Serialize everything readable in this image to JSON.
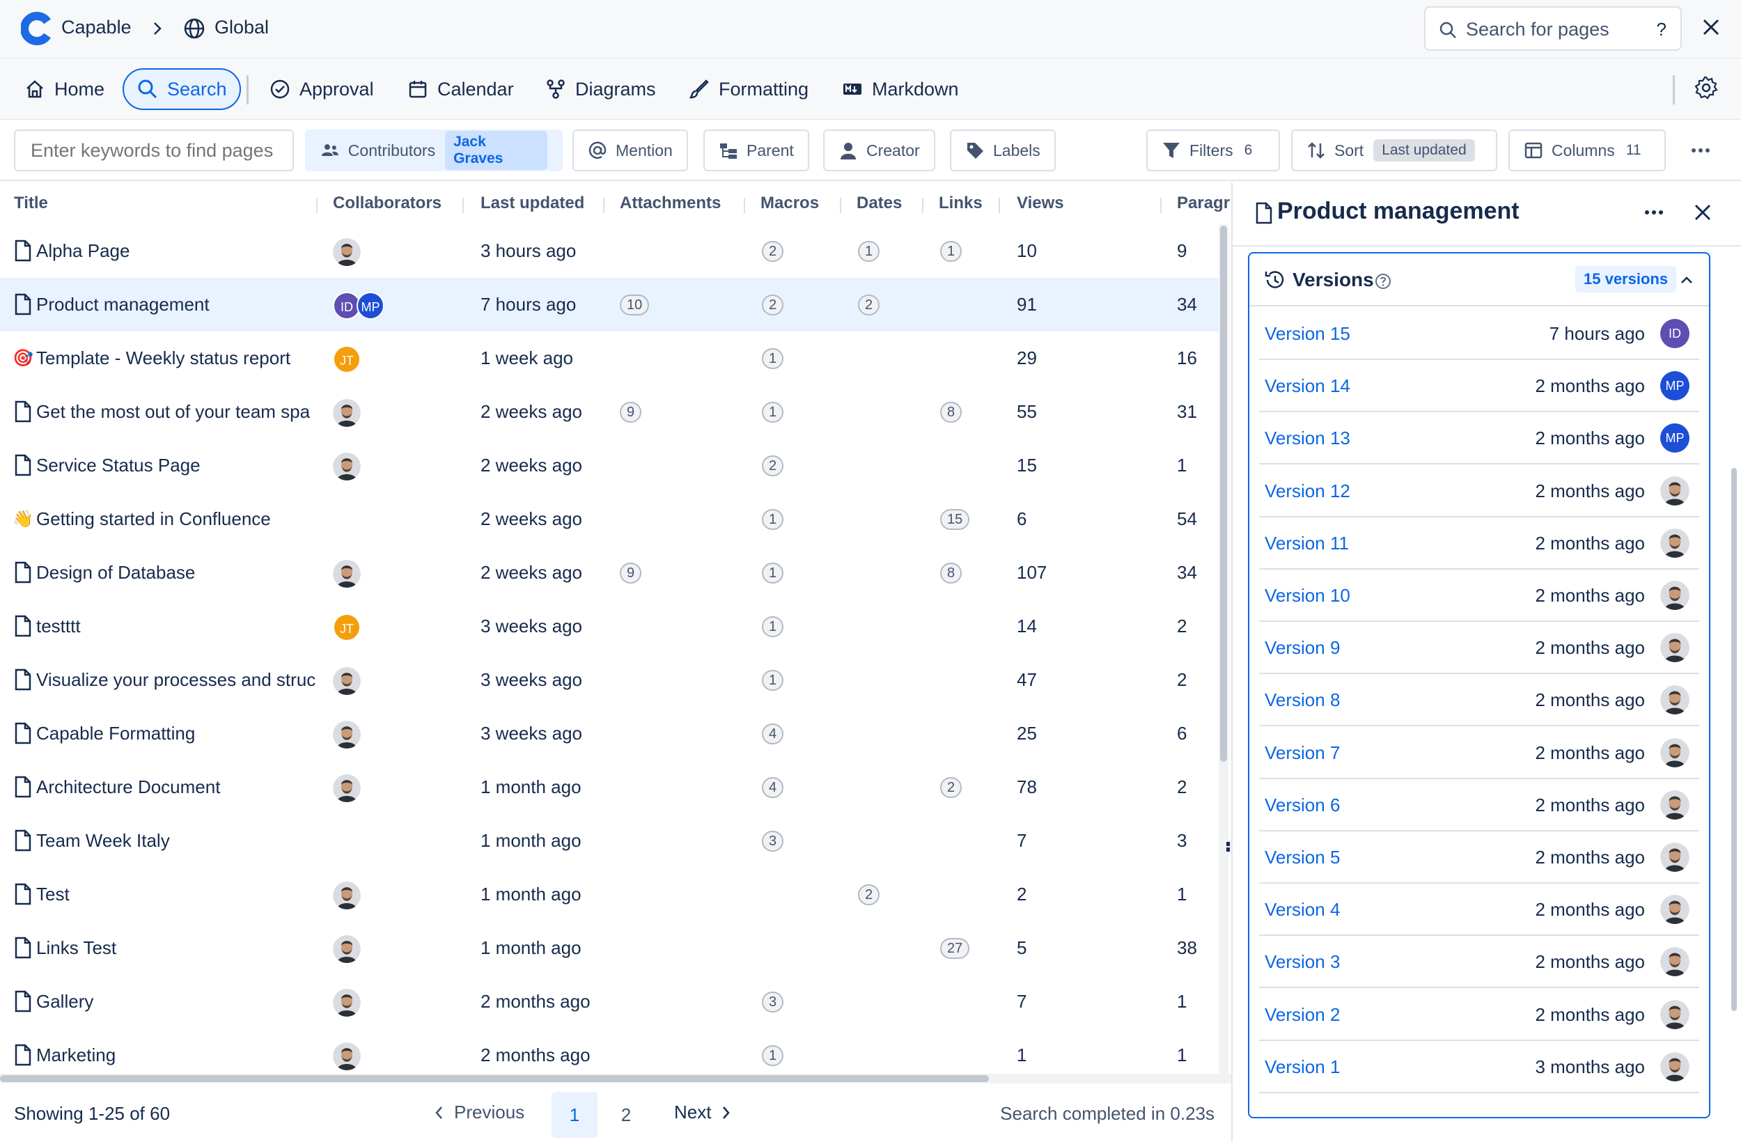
{
  "breadcrumb": {
    "app": "Capable",
    "space": "Global"
  },
  "top_search": {
    "placeholder": "Search for pages",
    "help": "?"
  },
  "nav": {
    "home": "Home",
    "search": "Search",
    "approval": "Approval",
    "calendar": "Calendar",
    "diagrams": "Diagrams",
    "formatting": "Formatting",
    "markdown": "Markdown"
  },
  "filters": {
    "keyword_placeholder": "Enter keywords to find pages",
    "contributors": "Contributors",
    "contributors_value": "Jack Graves",
    "mention": "Mention",
    "parent": "Parent",
    "creator": "Creator",
    "labels": "Labels",
    "filters": "Filters",
    "filters_count": "6",
    "sort": "Sort",
    "sort_value": "Last updated",
    "columns": "Columns",
    "columns_count": "11"
  },
  "table": {
    "headers": {
      "title": "Title",
      "collaborators": "Collaborators",
      "last_updated": "Last updated",
      "attachments": "Attachments",
      "macros": "Macros",
      "dates": "Dates",
      "links": "Links",
      "views": "Views",
      "paragraphs": "Paragr"
    },
    "rows": [
      {
        "title": "Alpha Page",
        "icon": "doc",
        "collab": [
          "photo"
        ],
        "updated": "3 hours ago",
        "attachments": "",
        "macros": "2",
        "dates": "1",
        "links": "1",
        "views": "10",
        "paragraphs": "9"
      },
      {
        "title": "Product management",
        "icon": "doc",
        "collab": [
          "ID",
          "MP"
        ],
        "updated": "7 hours ago",
        "attachments": "10",
        "macros": "2",
        "dates": "2",
        "links": "",
        "views": "91",
        "paragraphs": "34"
      },
      {
        "title": "Template - Weekly status report",
        "icon": "🎯",
        "collab": [
          "JT"
        ],
        "updated": "1 week ago",
        "attachments": "",
        "macros": "1",
        "dates": "",
        "links": "",
        "views": "29",
        "paragraphs": "16"
      },
      {
        "title": "Get the most out of your team spa",
        "icon": "doc",
        "collab": [
          "photo"
        ],
        "updated": "2 weeks ago",
        "attachments": "9",
        "macros": "1",
        "dates": "",
        "links": "8",
        "views": "55",
        "paragraphs": "31"
      },
      {
        "title": "Service Status Page",
        "icon": "doc",
        "collab": [
          "photo"
        ],
        "updated": "2 weeks ago",
        "attachments": "",
        "macros": "2",
        "dates": "",
        "links": "",
        "views": "15",
        "paragraphs": "1"
      },
      {
        "title": "Getting started in Confluence",
        "icon": "👋",
        "collab": [],
        "updated": "2 weeks ago",
        "attachments": "",
        "macros": "1",
        "dates": "",
        "links": "15",
        "views": "6",
        "paragraphs": "54"
      },
      {
        "title": "Design of Database",
        "icon": "doc",
        "collab": [
          "photo"
        ],
        "updated": "2 weeks ago",
        "attachments": "9",
        "macros": "1",
        "dates": "",
        "links": "8",
        "views": "107",
        "paragraphs": "34"
      },
      {
        "title": "testttt",
        "icon": "doc",
        "collab": [
          "JT"
        ],
        "updated": "3 weeks ago",
        "attachments": "",
        "macros": "1",
        "dates": "",
        "links": "",
        "views": "14",
        "paragraphs": "2"
      },
      {
        "title": "Visualize your processes and struc",
        "icon": "doc",
        "collab": [
          "photo"
        ],
        "updated": "3 weeks ago",
        "attachments": "",
        "macros": "1",
        "dates": "",
        "links": "",
        "views": "47",
        "paragraphs": "2"
      },
      {
        "title": "Capable Formatting",
        "icon": "doc",
        "collab": [
          "photo"
        ],
        "updated": "3 weeks ago",
        "attachments": "",
        "macros": "4",
        "dates": "",
        "links": "",
        "views": "25",
        "paragraphs": "6"
      },
      {
        "title": "Architecture Document",
        "icon": "doc",
        "collab": [
          "photo"
        ],
        "updated": "1 month ago",
        "attachments": "",
        "macros": "4",
        "dates": "",
        "links": "2",
        "views": "78",
        "paragraphs": "2"
      },
      {
        "title": "Team Week Italy",
        "icon": "doc",
        "collab": [],
        "updated": "1 month ago",
        "attachments": "",
        "macros": "3",
        "dates": "",
        "links": "",
        "views": "7",
        "paragraphs": "3"
      },
      {
        "title": "Test",
        "icon": "doc",
        "collab": [
          "photo"
        ],
        "updated": "1 month ago",
        "attachments": "",
        "macros": "",
        "dates": "2",
        "links": "",
        "views": "2",
        "paragraphs": "1"
      },
      {
        "title": "Links Test",
        "icon": "doc",
        "collab": [
          "photo"
        ],
        "updated": "1 month ago",
        "attachments": "",
        "macros": "",
        "dates": "",
        "links": "27",
        "views": "5",
        "paragraphs": "38"
      },
      {
        "title": "Gallery",
        "icon": "doc",
        "collab": [
          "photo"
        ],
        "updated": "2 months ago",
        "attachments": "",
        "macros": "3",
        "dates": "",
        "links": "",
        "views": "7",
        "paragraphs": "1"
      },
      {
        "title": "Marketing",
        "icon": "doc",
        "collab": [
          "photo"
        ],
        "updated": "2 months ago",
        "attachments": "",
        "macros": "1",
        "dates": "",
        "links": "",
        "views": "1",
        "paragraphs": "1"
      }
    ],
    "selected_row": 1
  },
  "footer": {
    "showing": "Showing 1-25 of 60",
    "previous": "Previous",
    "page1": "1",
    "page2": "2",
    "next": "Next",
    "search_time": "Search completed in 0.23s"
  },
  "panel": {
    "title": "Product management",
    "versions_title": "Versions",
    "versions_count": "15 versions",
    "versions": [
      {
        "name": "Version 15",
        "time": "7 hours ago",
        "author": "ID"
      },
      {
        "name": "Version 14",
        "time": "2 months ago",
        "author": "MP"
      },
      {
        "name": "Version 13",
        "time": "2 months ago",
        "author": "MP"
      },
      {
        "name": "Version 12",
        "time": "2 months ago",
        "author": "photo"
      },
      {
        "name": "Version 11",
        "time": "2 months ago",
        "author": "photo"
      },
      {
        "name": "Version 10",
        "time": "2 months ago",
        "author": "photo"
      },
      {
        "name": "Version 9",
        "time": "2 months ago",
        "author": "photo"
      },
      {
        "name": "Version 8",
        "time": "2 months ago",
        "author": "photo"
      },
      {
        "name": "Version 7",
        "time": "2 months ago",
        "author": "photo"
      },
      {
        "name": "Version 6",
        "time": "2 months ago",
        "author": "photo"
      },
      {
        "name": "Version 5",
        "time": "2 months ago",
        "author": "photo"
      },
      {
        "name": "Version 4",
        "time": "2 months ago",
        "author": "photo"
      },
      {
        "name": "Version 3",
        "time": "2 months ago",
        "author": "photo"
      },
      {
        "name": "Version 2",
        "time": "2 months ago",
        "author": "photo"
      },
      {
        "name": "Version 1",
        "time": "3 months ago",
        "author": "photo"
      }
    ]
  },
  "colors": {
    "accent": "#0C66E4",
    "id_avatar": "#5E4DB2",
    "mp_avatar": "#1D4ED8",
    "jt_avatar": "#F59E0B"
  }
}
